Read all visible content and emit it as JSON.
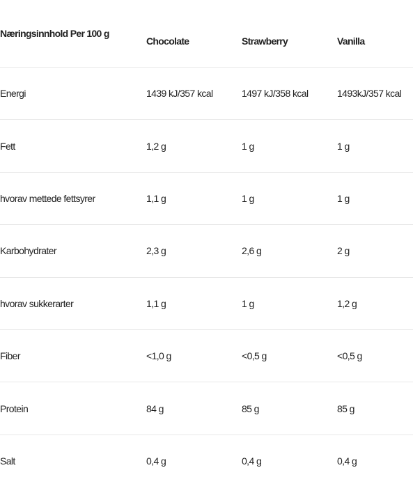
{
  "table": {
    "headers": [
      "Næringsinnhold Per 100 g",
      "Chocolate",
      "Strawberry",
      "Vanilla"
    ],
    "rows": [
      [
        "Energi",
        "1439 kJ/357 kcal",
        "1497 kJ/358 kcal",
        "1493kJ/357 kcal"
      ],
      [
        "Fett",
        "1,2 g",
        "1 g",
        "1 g"
      ],
      [
        "hvorav mettede fettsyrer",
        "1,1 g",
        "1 g",
        "1 g"
      ],
      [
        "Karbohydrater",
        "2,3 g",
        "2,6 g",
        "2 g"
      ],
      [
        "hvorav sukkerarter",
        "1,1 g",
        "1 g",
        "1,2 g"
      ],
      [
        "Fiber",
        "<1,0 g",
        "<0,5 g",
        "<0,5 g"
      ],
      [
        "Protein",
        "84 g",
        "85 g",
        "85 g"
      ],
      [
        "Salt",
        "0,4 g",
        "0,4 g",
        "0,4 g"
      ]
    ]
  }
}
